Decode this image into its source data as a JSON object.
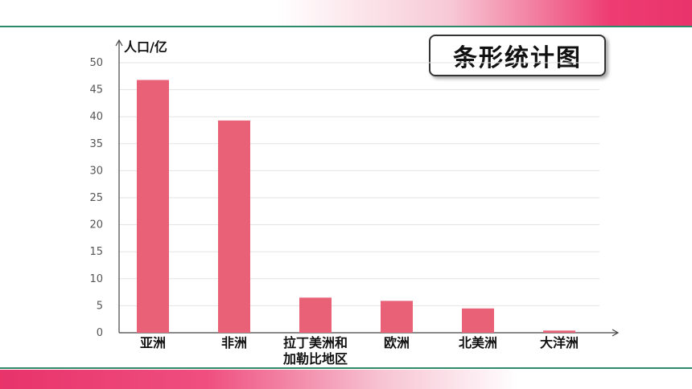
{
  "title": "条形统计图",
  "chart_data": {
    "type": "bar",
    "ylabel": "人口/亿",
    "xlabel": "",
    "categories": [
      [
        "亚洲"
      ],
      [
        "非洲"
      ],
      [
        "拉丁美洲和",
        "加勒比地区"
      ],
      [
        "欧洲"
      ],
      [
        "北美洲"
      ],
      [
        "大洋洲"
      ]
    ],
    "values": [
      46.8,
      39.3,
      6.5,
      5.9,
      4.5,
      0.4
    ],
    "ylim": [
      0,
      50
    ],
    "yticks": [
      0,
      5,
      10,
      15,
      20,
      25,
      30,
      35,
      40,
      45,
      50
    ],
    "grid": true,
    "bar_color": "#e86177"
  }
}
